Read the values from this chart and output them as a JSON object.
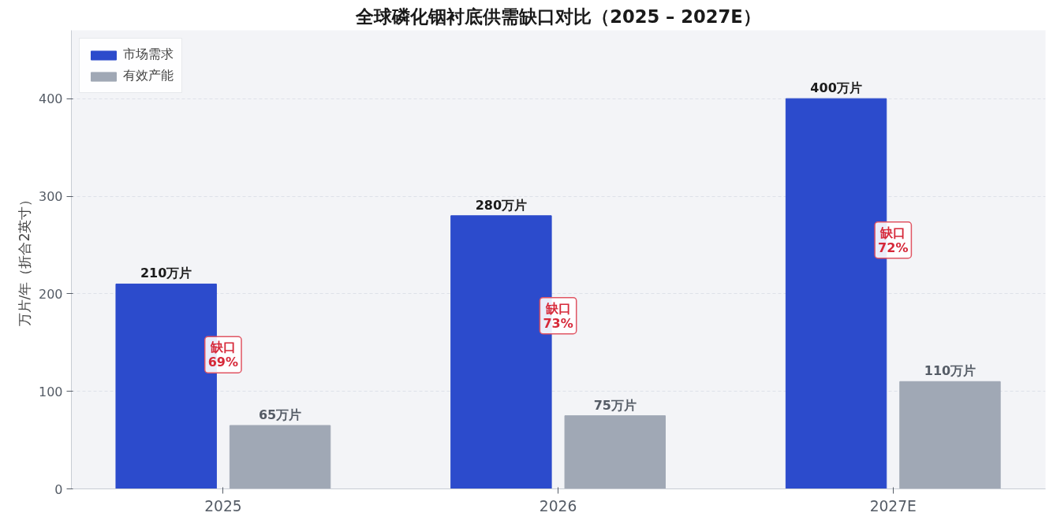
{
  "chart_data": {
    "type": "bar",
    "title": "全球磷化铟衬底供需缺口对比（2025 – 2027E）",
    "ylabel": "万片/年（折合2英寸）",
    "categories": [
      "2025",
      "2026",
      "2027E"
    ],
    "series": [
      {
        "name": "市场需求",
        "color": "#2c4bcc",
        "values": [
          210,
          280,
          400
        ],
        "value_labels": [
          "210万片",
          "280万片",
          "400万片"
        ]
      },
      {
        "name": "有效产能",
        "color": "#a0a8b5",
        "values": [
          65,
          75,
          110
        ],
        "value_labels": [
          "65万片",
          "75万片",
          "110万片"
        ]
      }
    ],
    "ylim": [
      0,
      470
    ],
    "yticks": [
      0,
      100,
      200,
      300,
      400
    ],
    "grid": "y",
    "legend": "top left",
    "annotations": [
      "缺口\n69%",
      "缺口\n73%",
      "缺口\n72%"
    ]
  }
}
